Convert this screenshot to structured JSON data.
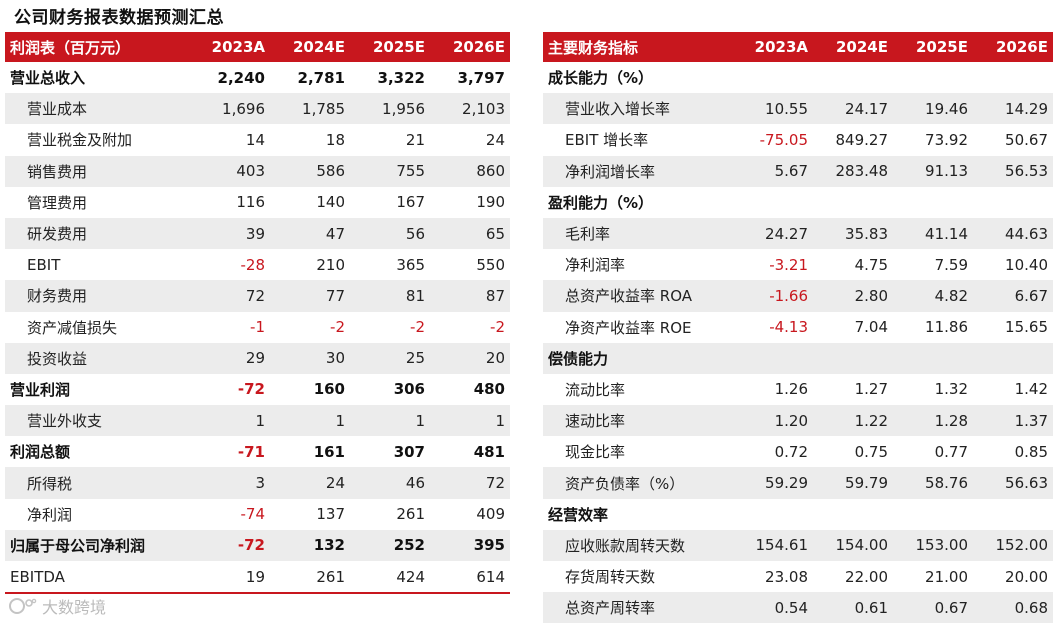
{
  "title": "公司财务报表数据预测汇总",
  "watermark": "大数跨境",
  "colors": {
    "accent": "#c8171e",
    "shade": "#ececec"
  },
  "left_table": {
    "headers": [
      "利润表（百万元）",
      "2023A",
      "2024E",
      "2025E",
      "2026E"
    ],
    "rows": [
      {
        "label": "营业总收入",
        "values": [
          "2,240",
          "2,781",
          "3,322",
          "3,797"
        ],
        "bold": true,
        "shaded": false,
        "indent": false,
        "neg": [
          false,
          false,
          false,
          false
        ]
      },
      {
        "label": "营业成本",
        "values": [
          "1,696",
          "1,785",
          "1,956",
          "2,103"
        ],
        "bold": false,
        "shaded": true,
        "indent": true,
        "neg": [
          false,
          false,
          false,
          false
        ]
      },
      {
        "label": "营业税金及附加",
        "values": [
          "14",
          "18",
          "21",
          "24"
        ],
        "bold": false,
        "shaded": false,
        "indent": true,
        "neg": [
          false,
          false,
          false,
          false
        ]
      },
      {
        "label": "销售费用",
        "values": [
          "403",
          "586",
          "755",
          "860"
        ],
        "bold": false,
        "shaded": true,
        "indent": true,
        "neg": [
          false,
          false,
          false,
          false
        ]
      },
      {
        "label": "管理费用",
        "values": [
          "116",
          "140",
          "167",
          "190"
        ],
        "bold": false,
        "shaded": false,
        "indent": true,
        "neg": [
          false,
          false,
          false,
          false
        ]
      },
      {
        "label": "研发费用",
        "values": [
          "39",
          "47",
          "56",
          "65"
        ],
        "bold": false,
        "shaded": true,
        "indent": true,
        "neg": [
          false,
          false,
          false,
          false
        ]
      },
      {
        "label": "EBIT",
        "values": [
          "-28",
          "210",
          "365",
          "550"
        ],
        "bold": false,
        "shaded": false,
        "indent": true,
        "neg": [
          true,
          false,
          false,
          false
        ]
      },
      {
        "label": "财务费用",
        "values": [
          "72",
          "77",
          "81",
          "87"
        ],
        "bold": false,
        "shaded": true,
        "indent": true,
        "neg": [
          false,
          false,
          false,
          false
        ]
      },
      {
        "label": "资产减值损失",
        "values": [
          "-1",
          "-2",
          "-2",
          "-2"
        ],
        "bold": false,
        "shaded": false,
        "indent": true,
        "neg": [
          true,
          true,
          true,
          true
        ]
      },
      {
        "label": "投资收益",
        "values": [
          "29",
          "30",
          "25",
          "20"
        ],
        "bold": false,
        "shaded": true,
        "indent": true,
        "neg": [
          false,
          false,
          false,
          false
        ]
      },
      {
        "label": "营业利润",
        "values": [
          "-72",
          "160",
          "306",
          "480"
        ],
        "bold": true,
        "shaded": false,
        "indent": false,
        "neg": [
          true,
          false,
          false,
          false
        ]
      },
      {
        "label": "营业外收支",
        "values": [
          "1",
          "1",
          "1",
          "1"
        ],
        "bold": false,
        "shaded": true,
        "indent": true,
        "neg": [
          false,
          false,
          false,
          false
        ]
      },
      {
        "label": "利润总额",
        "values": [
          "-71",
          "161",
          "307",
          "481"
        ],
        "bold": true,
        "shaded": false,
        "indent": false,
        "neg": [
          true,
          false,
          false,
          false
        ]
      },
      {
        "label": "所得税",
        "values": [
          "3",
          "24",
          "46",
          "72"
        ],
        "bold": false,
        "shaded": true,
        "indent": true,
        "neg": [
          false,
          false,
          false,
          false
        ]
      },
      {
        "label": "净利润",
        "values": [
          "-74",
          "137",
          "261",
          "409"
        ],
        "bold": false,
        "shaded": false,
        "indent": true,
        "neg": [
          true,
          false,
          false,
          false
        ]
      },
      {
        "label": "归属于母公司净利润",
        "values": [
          "-72",
          "132",
          "252",
          "395"
        ],
        "bold": true,
        "shaded": true,
        "indent": false,
        "neg": [
          true,
          false,
          false,
          false
        ]
      },
      {
        "label": "EBITDA",
        "values": [
          "19",
          "261",
          "424",
          "614"
        ],
        "bold": false,
        "shaded": false,
        "indent": false,
        "neg": [
          false,
          false,
          false,
          false
        ]
      }
    ]
  },
  "right_table": {
    "headers": [
      "主要财务指标",
      "2023A",
      "2024E",
      "2025E",
      "2026E"
    ],
    "rows": [
      {
        "label": "成长能力（%）",
        "values": [
          "",
          "",
          "",
          ""
        ],
        "bold": true,
        "shaded": false,
        "indent": false,
        "neg": [
          false,
          false,
          false,
          false
        ]
      },
      {
        "label": "营业收入增长率",
        "values": [
          "10.55",
          "24.17",
          "19.46",
          "14.29"
        ],
        "bold": false,
        "shaded": true,
        "indent": true,
        "neg": [
          false,
          false,
          false,
          false
        ]
      },
      {
        "label": "EBIT 增长率",
        "values": [
          "-75.05",
          "849.27",
          "73.92",
          "50.67"
        ],
        "bold": false,
        "shaded": false,
        "indent": true,
        "neg": [
          true,
          false,
          false,
          false
        ]
      },
      {
        "label": "净利润增长率",
        "values": [
          "5.67",
          "283.48",
          "91.13",
          "56.53"
        ],
        "bold": false,
        "shaded": true,
        "indent": true,
        "neg": [
          false,
          false,
          false,
          false
        ]
      },
      {
        "label": "盈利能力（%）",
        "values": [
          "",
          "",
          "",
          ""
        ],
        "bold": true,
        "shaded": false,
        "indent": false,
        "neg": [
          false,
          false,
          false,
          false
        ]
      },
      {
        "label": "毛利率",
        "values": [
          "24.27",
          "35.83",
          "41.14",
          "44.63"
        ],
        "bold": false,
        "shaded": true,
        "indent": true,
        "neg": [
          false,
          false,
          false,
          false
        ]
      },
      {
        "label": "净利润率",
        "values": [
          "-3.21",
          "4.75",
          "7.59",
          "10.40"
        ],
        "bold": false,
        "shaded": false,
        "indent": true,
        "neg": [
          true,
          false,
          false,
          false
        ]
      },
      {
        "label": "总资产收益率 ROA",
        "values": [
          "-1.66",
          "2.80",
          "4.82",
          "6.67"
        ],
        "bold": false,
        "shaded": true,
        "indent": true,
        "neg": [
          true,
          false,
          false,
          false
        ]
      },
      {
        "label": "净资产收益率 ROE",
        "values": [
          "-4.13",
          "7.04",
          "11.86",
          "15.65"
        ],
        "bold": false,
        "shaded": false,
        "indent": true,
        "neg": [
          true,
          false,
          false,
          false
        ]
      },
      {
        "label": "偿债能力",
        "values": [
          "",
          "",
          "",
          ""
        ],
        "bold": true,
        "shaded": true,
        "indent": false,
        "neg": [
          false,
          false,
          false,
          false
        ]
      },
      {
        "label": "流动比率",
        "values": [
          "1.26",
          "1.27",
          "1.32",
          "1.42"
        ],
        "bold": false,
        "shaded": false,
        "indent": true,
        "neg": [
          false,
          false,
          false,
          false
        ]
      },
      {
        "label": "速动比率",
        "values": [
          "1.20",
          "1.22",
          "1.28",
          "1.37"
        ],
        "bold": false,
        "shaded": true,
        "indent": true,
        "neg": [
          false,
          false,
          false,
          false
        ]
      },
      {
        "label": "现金比率",
        "values": [
          "0.72",
          "0.75",
          "0.77",
          "0.85"
        ],
        "bold": false,
        "shaded": false,
        "indent": true,
        "neg": [
          false,
          false,
          false,
          false
        ]
      },
      {
        "label": "资产负债率（%）",
        "values": [
          "59.29",
          "59.79",
          "58.76",
          "56.63"
        ],
        "bold": false,
        "shaded": true,
        "indent": true,
        "neg": [
          false,
          false,
          false,
          false
        ]
      },
      {
        "label": "经营效率",
        "values": [
          "",
          "",
          "",
          ""
        ],
        "bold": true,
        "shaded": false,
        "indent": false,
        "neg": [
          false,
          false,
          false,
          false
        ]
      },
      {
        "label": "应收账款周转天数",
        "values": [
          "154.61",
          "154.00",
          "153.00",
          "152.00"
        ],
        "bold": false,
        "shaded": true,
        "indent": true,
        "neg": [
          false,
          false,
          false,
          false
        ]
      },
      {
        "label": "存货周转天数",
        "values": [
          "23.08",
          "22.00",
          "21.00",
          "20.00"
        ],
        "bold": false,
        "shaded": false,
        "indent": true,
        "neg": [
          false,
          false,
          false,
          false
        ]
      },
      {
        "label": "总资产周转率",
        "values": [
          "0.54",
          "0.61",
          "0.67",
          "0.68"
        ],
        "bold": false,
        "shaded": true,
        "indent": true,
        "neg": [
          false,
          false,
          false,
          false
        ]
      }
    ]
  }
}
